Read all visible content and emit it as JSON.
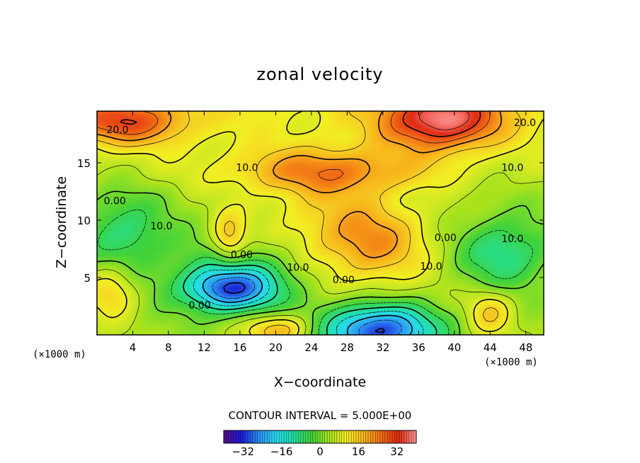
{
  "chart_data": {
    "type": "heatmap",
    "title": "zonal velocity",
    "xlabel": "X−coordinate",
    "ylabel": "Z−coordinate",
    "x_unit_label": "(×1000 m)",
    "z_unit_label": "(×1000 m)",
    "xlim": [
      0,
      50
    ],
    "ylim": [
      0,
      19.5
    ],
    "x_ticks": [
      4,
      8,
      12,
      16,
      20,
      24,
      28,
      32,
      36,
      40,
      44,
      48
    ],
    "x_tick_labels": [
      "4",
      "8",
      "12",
      "16",
      "20",
      "24",
      "28",
      "32",
      "36",
      "40",
      "44",
      "48"
    ],
    "y_ticks": [
      5,
      10,
      15
    ],
    "y_tick_labels": [
      "5",
      "10",
      "15"
    ],
    "contour_interval_text": "CONTOUR INTERVAL = 5.000E+00",
    "contour_interval": 5,
    "colorbar": {
      "range": [
        -40,
        40
      ],
      "ticks": [
        -32,
        -16,
        0,
        16,
        32
      ],
      "tick_labels": [
        "−32",
        "−16",
        "0",
        "16",
        "32"
      ],
      "colors": [
        "#5a0f8a",
        "#1a1ad6",
        "#2d8ff2",
        "#26d9f0",
        "#22e0a0",
        "#3fd23a",
        "#a6e21f",
        "#f2ee22",
        "#f7b81f",
        "#f26d13",
        "#e02a12",
        "#ff9a9a"
      ]
    },
    "contour_labels": [
      {
        "text": "20.0",
        "x": 2.3,
        "z": 17.9
      },
      {
        "text": "20.0",
        "x": 47.9,
        "z": 18.5
      },
      {
        "text": "10.0",
        "x": 16.8,
        "z": 14.6
      },
      {
        "text": "10.0",
        "x": 46.5,
        "z": 14.6
      },
      {
        "text": "0.00",
        "x": 2.0,
        "z": 11.7
      },
      {
        "text": "10.0",
        "x": 7.2,
        "z": 9.5
      },
      {
        "text": "0.00",
        "x": 16.2,
        "z": 7.0
      },
      {
        "text": "10.0",
        "x": 22.5,
        "z": 5.9
      },
      {
        "text": "0.00",
        "x": 27.6,
        "z": 4.8
      },
      {
        "text": "0.00",
        "x": 39.0,
        "z": 8.5
      },
      {
        "text": "10.0",
        "x": 37.4,
        "z": 6.0
      },
      {
        "text": "10.0",
        "x": 46.5,
        "z": 8.4
      },
      {
        "text": "0.00",
        "x": 11.5,
        "z": 2.6
      }
    ],
    "field_features": [
      {
        "x": 38.5,
        "z": 18.8,
        "value": 30,
        "sx": 4.5,
        "sz": 1.8
      },
      {
        "x": 3.0,
        "z": 18.6,
        "value": 20,
        "sx": 5.0,
        "sz": 1.4
      },
      {
        "x": 26.0,
        "z": 14.3,
        "value": 14,
        "sx": 8.0,
        "sz": 1.4
      },
      {
        "x": 14.8,
        "z": 4.0,
        "value": -26,
        "sx": 3.4,
        "sz": 1.3
      },
      {
        "x": 16.5,
        "z": 5.2,
        "value": -12,
        "sx": 6.0,
        "sz": 2.4
      },
      {
        "x": 31.5,
        "z": 0.4,
        "value": -35,
        "sx": 4.5,
        "sz": 1.6
      },
      {
        "x": 45.5,
        "z": 7.2,
        "value": -14,
        "sx": 3.6,
        "sz": 2.2
      },
      {
        "x": 3.0,
        "z": 9.0,
        "value": -12,
        "sx": 3.5,
        "sz": 2.4
      },
      {
        "x": 14.8,
        "z": 8.4,
        "value": 14,
        "sx": 1.4,
        "sz": 1.6
      },
      {
        "x": 31.0,
        "z": 8.0,
        "value": 14,
        "sx": 4.5,
        "sz": 2.6
      },
      {
        "x": 20.5,
        "z": 0.5,
        "value": 16,
        "sx": 2.8,
        "sz": 1.0
      },
      {
        "x": 1.6,
        "z": 3.8,
        "value": 12,
        "sx": 2.0,
        "sz": 1.6
      },
      {
        "x": 44.0,
        "z": 2.0,
        "value": 12,
        "sx": 1.8,
        "sz": 1.4
      },
      {
        "x": 25.0,
        "z": 10.0,
        "value": 8,
        "sx": 6.0,
        "sz": 4.0
      }
    ]
  }
}
